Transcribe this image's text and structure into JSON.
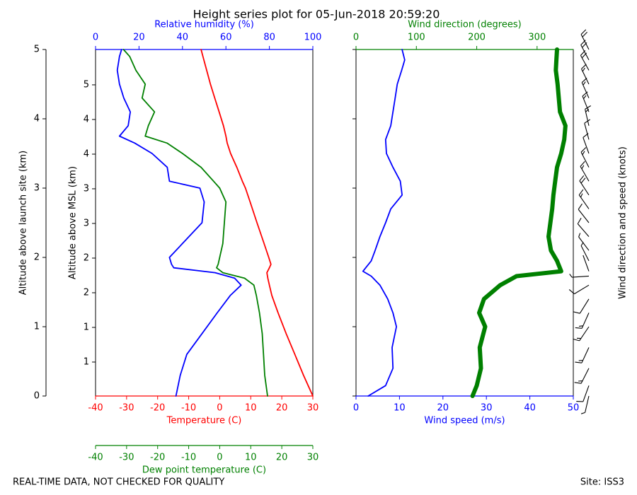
{
  "title": "Height series plot for 05-Jun-2018 20:59:20",
  "footer_left": "REAL-TIME DATA, NOT CHECKED FOR QUALITY",
  "footer_right": "Site: ISS3",
  "chart_data": [
    {
      "type": "line",
      "ylabel": "Altitude above launch site (km)",
      "ylim": [
        0,
        5
      ],
      "yticks": [
        0,
        1,
        2,
        3,
        4,
        5
      ],
      "y2label": "Altitude above MSL (km)",
      "y2lim": [
        0.51,
        5.51
      ],
      "y2ticks": [
        {
          "value": 1.0,
          "label": "1"
        },
        {
          "value": 1.5,
          "label": "1"
        },
        {
          "value": 2.0,
          "label": "2"
        },
        {
          "value": 2.5,
          "label": "2"
        },
        {
          "value": 3.0,
          "label": "3"
        },
        {
          "value": 3.5,
          "label": "3"
        },
        {
          "value": 4.0,
          "label": "4"
        },
        {
          "value": 4.5,
          "label": "4"
        },
        {
          "value": 5.0,
          "label": "5"
        }
      ],
      "x_axes": [
        {
          "label": "Temperature (C)",
          "color": "#ff0000",
          "position": "bottom",
          "xlim": [
            -40,
            30
          ],
          "xticks": [
            -40,
            -30,
            -20,
            -10,
            0,
            10,
            20,
            30
          ]
        },
        {
          "label": "Relative humidity (%)",
          "color": "#0000ff",
          "position": "top",
          "xlim": [
            0,
            100
          ],
          "xticks": [
            0,
            20,
            40,
            60,
            80,
            100
          ]
        },
        {
          "label": "Dew point temperature (C)",
          "color": "#008000",
          "position": "offset",
          "xlim": [
            -40,
            30
          ],
          "xticks": [
            -40,
            -30,
            -20,
            -10,
            0,
            10,
            20,
            30
          ]
        }
      ],
      "altitude": [
        0,
        0.3,
        0.6,
        0.9,
        1.2,
        1.45,
        1.6,
        1.7,
        1.78,
        1.85,
        1.9,
        2.0,
        2.2,
        2.5,
        2.8,
        3.0,
        3.1,
        3.3,
        3.5,
        3.65,
        3.75,
        3.9,
        4.1,
        4.3,
        4.5,
        4.7,
        4.9,
        5.0
      ],
      "series": [
        {
          "axis": 0,
          "color": "#ff0000",
          "values": [
            30,
            27,
            24.2,
            21.4,
            18.8,
            16.8,
            16,
            15.5,
            15.2,
            16,
            16.5,
            15.8,
            14.3,
            12,
            9.8,
            8.3,
            7.3,
            5.5,
            3.5,
            2.4,
            2.0,
            1.2,
            -0.2,
            -1.6,
            -3,
            -4.2,
            -5.4,
            -6
          ]
        },
        {
          "axis": 2,
          "color": "#008000",
          "values": [
            15.4,
            14.5,
            14.1,
            13.7,
            12.8,
            11.8,
            11,
            8,
            1,
            -1,
            -0.5,
            0,
            1,
            1.5,
            2,
            0,
            -2,
            -6,
            -12,
            -17,
            -24,
            -23,
            -21,
            -25,
            -24,
            -27,
            -29,
            -31
          ]
        },
        {
          "axis": 1,
          "color": "#0000ff",
          "values": [
            37,
            39,
            42,
            49,
            56,
            62,
            67,
            64,
            55,
            36,
            35,
            34,
            40,
            49,
            50,
            48,
            34,
            33,
            26,
            18,
            11,
            15,
            16,
            13,
            11,
            10,
            11,
            12
          ]
        }
      ]
    },
    {
      "type": "line",
      "ylim": [
        0,
        5
      ],
      "yticks": [
        0,
        1,
        2,
        3,
        4,
        5
      ],
      "barb_label": "Wind direction and speed (knots)",
      "barbs": true,
      "x_axes": [
        {
          "label": "Wind speed (m/s)",
          "color": "#0000ff",
          "position": "bottom",
          "xlim": [
            0,
            50
          ],
          "xticks": [
            0,
            10,
            20,
            30,
            40,
            50
          ]
        },
        {
          "label": "Wind direction (degrees)",
          "color": "#008000",
          "position": "top",
          "xlim": [
            0,
            360
          ],
          "xticks": [
            0,
            100,
            200,
            300
          ]
        }
      ],
      "altitude": [
        0,
        0.15,
        0.4,
        0.7,
        1.0,
        1.2,
        1.4,
        1.6,
        1.73,
        1.8,
        1.95,
        2.1,
        2.3,
        2.5,
        2.7,
        2.9,
        3.1,
        3.3,
        3.5,
        3.7,
        3.9,
        4.1,
        4.3,
        4.5,
        4.7,
        4.85,
        5.0
      ],
      "series": [
        {
          "axis": 0,
          "color": "#0000ff",
          "values": [
            2.8,
            6.8,
            8.5,
            8.3,
            9.3,
            8.5,
            7.3,
            5.5,
            3.5,
            1.6,
            3.5,
            4.4,
            5.5,
            6.8,
            8,
            10.6,
            10.2,
            8.5,
            7,
            6.8,
            8,
            8.5,
            9,
            9.5,
            10.5,
            11.2,
            10.6
          ]
        },
        {
          "axis": 1,
          "color": "#008000",
          "width": 6,
          "values": [
            193,
            200,
            207,
            205,
            214,
            204,
            212,
            239,
            266,
            340,
            333,
            323,
            319,
            322,
            325,
            327,
            330,
            333,
            340,
            345,
            347,
            338,
            336,
            334,
            331,
            332,
            333
          ]
        }
      ]
    }
  ]
}
